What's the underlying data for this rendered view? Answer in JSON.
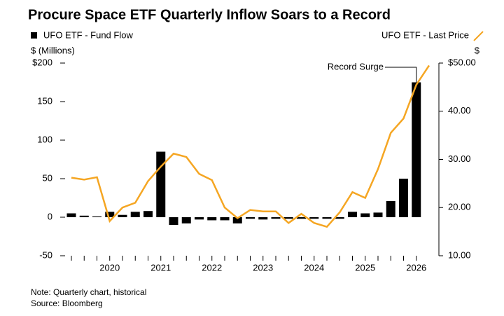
{
  "chart_data": {
    "type": "bar-line",
    "title": "Procure Space ETF Quarterly Inflow Soars to a Record",
    "y_label": "$ (Millions)",
    "y2_label": "$",
    "annotation": "Record Surge",
    "note": "Note: Quarterly chart, historical",
    "source": "Source: Bloomberg",
    "categories": [
      null,
      null,
      null,
      "2020",
      null,
      null,
      null,
      "2021",
      null,
      null,
      null,
      "2022",
      null,
      null,
      null,
      "2023",
      null,
      null,
      null,
      "2024",
      null,
      null,
      null,
      "2025",
      null,
      null,
      null,
      "2026",
      null
    ],
    "series": [
      {
        "name": "UFO ETF - Fund Flow",
        "color": "#000000",
        "kind": "bar",
        "values": [
          5,
          2,
          1,
          7,
          3,
          7,
          8,
          85,
          -10,
          -8,
          -3,
          -4,
          -4,
          -8,
          -2,
          -3,
          -2,
          -2,
          -2,
          -2,
          -2,
          -2,
          7,
          5,
          6,
          21,
          50,
          175,
          null
        ]
      },
      {
        "name": "UFO ETF - Last Price",
        "color": "#f5a623",
        "kind": "line",
        "axis": "y2",
        "values": [
          26.2,
          25.8,
          26.3,
          17.2,
          20,
          21,
          25.5,
          28.5,
          31.2,
          30.5,
          27,
          25.7,
          20,
          17.8,
          19.5,
          19.2,
          19.2,
          16.8,
          18.7,
          16.8,
          16,
          19,
          23.2,
          22,
          28,
          35.5,
          38.5,
          45.5,
          49.5
        ]
      }
    ],
    "ylim": [
      -50,
      200
    ],
    "yticks": [
      -50,
      0,
      50,
      100,
      150,
      {
        "value": 200,
        "label": "$200"
      }
    ],
    "y2lim": [
      10,
      50
    ],
    "y2ticks": [
      {
        "value": 10,
        "label": "10.00"
      },
      {
        "value": 20,
        "label": "20.00"
      },
      {
        "value": 30,
        "label": "30.00"
      },
      {
        "value": 40,
        "label": "40.00"
      },
      {
        "value": 50,
        "label": "$50.00"
      }
    ]
  }
}
